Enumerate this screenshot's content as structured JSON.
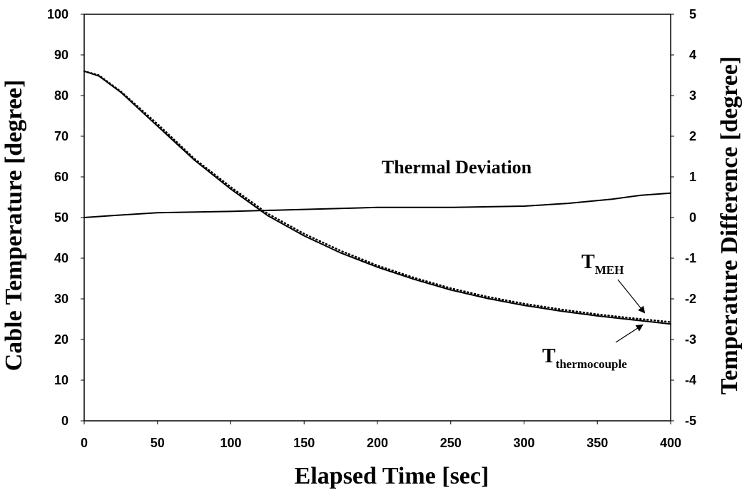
{
  "chart_data": {
    "type": "line",
    "title": "",
    "xlabel": "Elapsed Time [sec]",
    "ylabel_left": "Cable Temperature [degree]",
    "ylabel_right": "Temperature Difference [degree]",
    "xlim": [
      0,
      400
    ],
    "ylim_left": [
      0,
      100
    ],
    "ylim_right": [
      -5,
      5
    ],
    "x_ticks": [
      "0",
      "50",
      "100",
      "150",
      "200",
      "250",
      "300",
      "350",
      "400"
    ],
    "y_left_ticks": [
      "0",
      "10",
      "20",
      "30",
      "40",
      "50",
      "60",
      "70",
      "80",
      "90",
      "100"
    ],
    "y_right_ticks": [
      "-5",
      "-4",
      "-3",
      "-2",
      "-1",
      "0",
      "1",
      "2",
      "3",
      "4",
      "5"
    ],
    "grid": false,
    "legend": "none",
    "series": [
      {
        "name": "TMEH",
        "axis": "left",
        "style": "dotted",
        "x": [
          0,
          10,
          25,
          50,
          75,
          100,
          125,
          150,
          175,
          200,
          225,
          250,
          275,
          300,
          325,
          350,
          375,
          400
        ],
        "y": [
          86,
          85,
          81,
          73,
          64.5,
          57.5,
          51,
          46,
          41.8,
          38.2,
          35.2,
          32.6,
          30.5,
          28.8,
          27.4,
          26.2,
          25.2,
          24.3
        ]
      },
      {
        "name": "Tthermocouple",
        "axis": "left",
        "style": "solid",
        "x": [
          0,
          10,
          25,
          50,
          75,
          100,
          125,
          150,
          175,
          200,
          225,
          250,
          275,
          300,
          325,
          350,
          375,
          400
        ],
        "y": [
          86,
          84.8,
          80.8,
          72.5,
          64.2,
          57,
          50.5,
          45.5,
          41.3,
          37.8,
          34.8,
          32.2,
          30.1,
          28.4,
          27,
          25.8,
          24.8,
          23.8
        ]
      },
      {
        "name": "Thermal Deviation",
        "axis": "right",
        "style": "solid",
        "x": [
          0,
          20,
          50,
          100,
          150,
          200,
          250,
          300,
          330,
          360,
          380,
          400
        ],
        "y": [
          0,
          0.05,
          0.12,
          0.15,
          0.2,
          0.25,
          0.25,
          0.28,
          0.35,
          0.45,
          0.55,
          0.6
        ]
      }
    ],
    "annotations": [
      {
        "text": "Thermal Deviation"
      },
      {
        "main": "T",
        "sub": "MEH"
      },
      {
        "main": "T",
        "sub": "thermocouple"
      }
    ]
  }
}
